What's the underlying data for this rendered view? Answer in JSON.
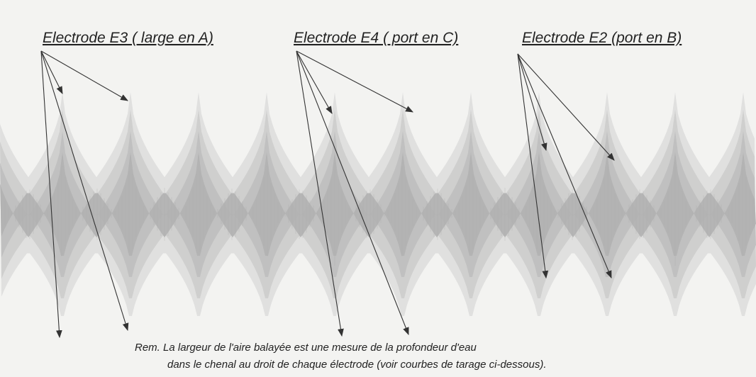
{
  "labels": {
    "e3": "Electrode E3 ( large en A)",
    "e4": "Electrode E4 ( port en C)",
    "e2": "Electrode E2 (port en B)"
  },
  "remark": {
    "line1": "Rem.  La largeur de l'aire balayée est une mesure de la profondeur d'eau",
    "line2": "dans le chenal au droit de chaque électrode (voir courbes de tarage ci-dessous)."
  }
}
